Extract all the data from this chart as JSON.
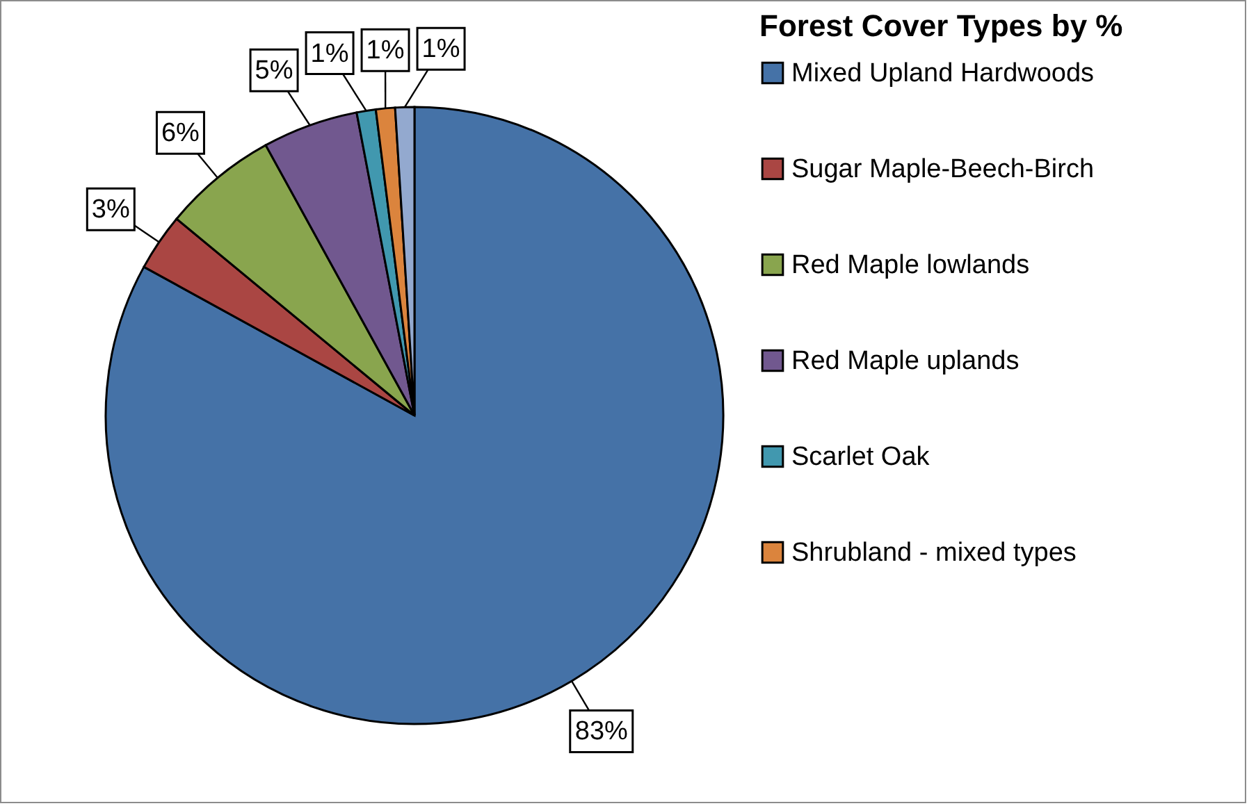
{
  "chart_data": {
    "type": "pie",
    "legend_title": "Forest Cover Types by %",
    "categories": [
      "Mixed Upland Hardwoods",
      "Sugar Maple-Beech-Birch",
      "Red Maple lowlands",
      "Red Maple uplands",
      "Scarlet Oak",
      "Shrubland - mixed types",
      null
    ],
    "values": [
      83,
      3,
      6,
      5,
      1,
      1,
      1
    ],
    "colors": [
      "#4572a7",
      "#aa4643",
      "#89a54e",
      "#71588f",
      "#4198af",
      "#db843d",
      "#93a9cf"
    ],
    "value_labels": [
      "83%",
      "3%",
      "6%",
      "5%",
      "1%",
      "1%",
      "1%"
    ],
    "legend": "top right"
  }
}
